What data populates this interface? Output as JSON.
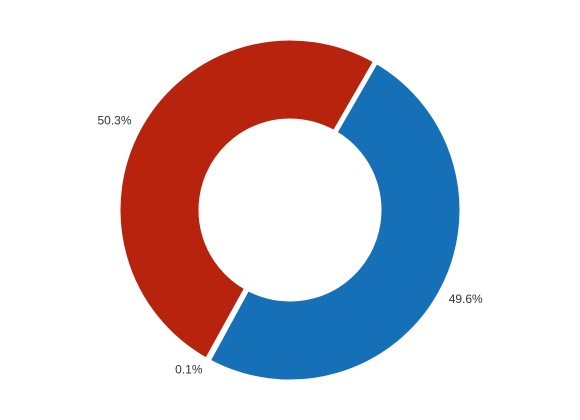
{
  "chart_data": {
    "type": "pie",
    "style": "donut",
    "slices": [
      {
        "label": "49.6%",
        "value": 49.6,
        "color": "#1670b7"
      },
      {
        "label": "0.1%",
        "value": 0.1,
        "color": "#b8230d"
      },
      {
        "label": "50.3%",
        "value": 50.3,
        "color": "#b8230d"
      }
    ],
    "legend": "none",
    "grid": false
  }
}
